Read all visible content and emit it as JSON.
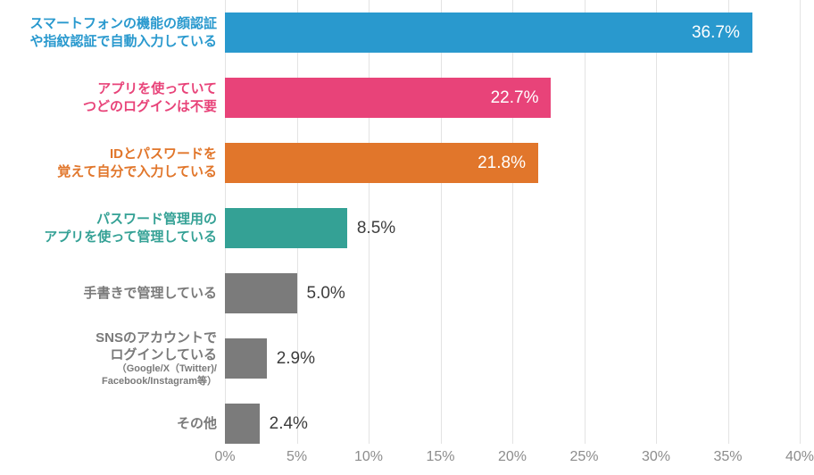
{
  "chart_data": {
    "type": "bar",
    "orientation": "horizontal",
    "title": "",
    "xlabel": "",
    "ylabel": "",
    "xlim": [
      0,
      40
    ],
    "grid": true,
    "grid_color": "#e3e3e3",
    "ticks": [
      {
        "label": "0%",
        "value": 0
      },
      {
        "label": "5%",
        "value": 5
      },
      {
        "label": "10%",
        "value": 10
      },
      {
        "label": "15%",
        "value": 15
      },
      {
        "label": "20%",
        "value": 20
      },
      {
        "label": "25%",
        "value": 25
      },
      {
        "label": "30%",
        "value": 30
      },
      {
        "label": "35%",
        "value": 35
      },
      {
        "label": "40%",
        "value": 40
      }
    ],
    "bars": [
      {
        "label_lines": [
          "スマートフォンの機能の顔認証",
          "や指紋認証で自動入力している"
        ],
        "sub_lines": [],
        "value": 36.7,
        "value_text": "36.7%",
        "color": "#2999ce",
        "label_color": "#2999ce",
        "value_position": "inside"
      },
      {
        "label_lines": [
          "アプリを使っていて",
          "つどのログインは不要"
        ],
        "sub_lines": [],
        "value": 22.7,
        "value_text": "22.7%",
        "color": "#e84379",
        "label_color": "#e84379",
        "value_position": "inside"
      },
      {
        "label_lines": [
          "IDとパスワードを",
          "覚えて自分で入力している"
        ],
        "sub_lines": [],
        "value": 21.8,
        "value_text": "21.8%",
        "color": "#e1762b",
        "label_color": "#e1762b",
        "value_position": "inside"
      },
      {
        "label_lines": [
          "パスワード管理用の",
          "アプリを使って管理している"
        ],
        "sub_lines": [],
        "value": 8.5,
        "value_text": "8.5%",
        "color": "#34a195",
        "label_color": "#34a195",
        "value_position": "outside"
      },
      {
        "label_lines": [
          "手書きで管理している"
        ],
        "sub_lines": [],
        "value": 5.0,
        "value_text": "5.0%",
        "color": "#7b7b7b",
        "label_color": "#7a7a7a",
        "value_position": "outside"
      },
      {
        "label_lines": [
          "SNSのアカウントで",
          "ログインしている"
        ],
        "sub_lines": [
          "（Google/X（Twitter)/",
          "Facebook/Instagram等）"
        ],
        "value": 2.9,
        "value_text": "2.9%",
        "color": "#7b7b7b",
        "label_color": "#7a7a7a",
        "value_position": "outside"
      },
      {
        "label_lines": [
          "その他"
        ],
        "sub_lines": [],
        "value": 2.4,
        "value_text": "2.4%",
        "color": "#7b7b7b",
        "label_color": "#7a7a7a",
        "value_position": "outside"
      }
    ],
    "value_inside_color": "#ffffff",
    "value_outside_color": "#3d3d3d",
    "axis_label_color": "#8c8c8c"
  }
}
